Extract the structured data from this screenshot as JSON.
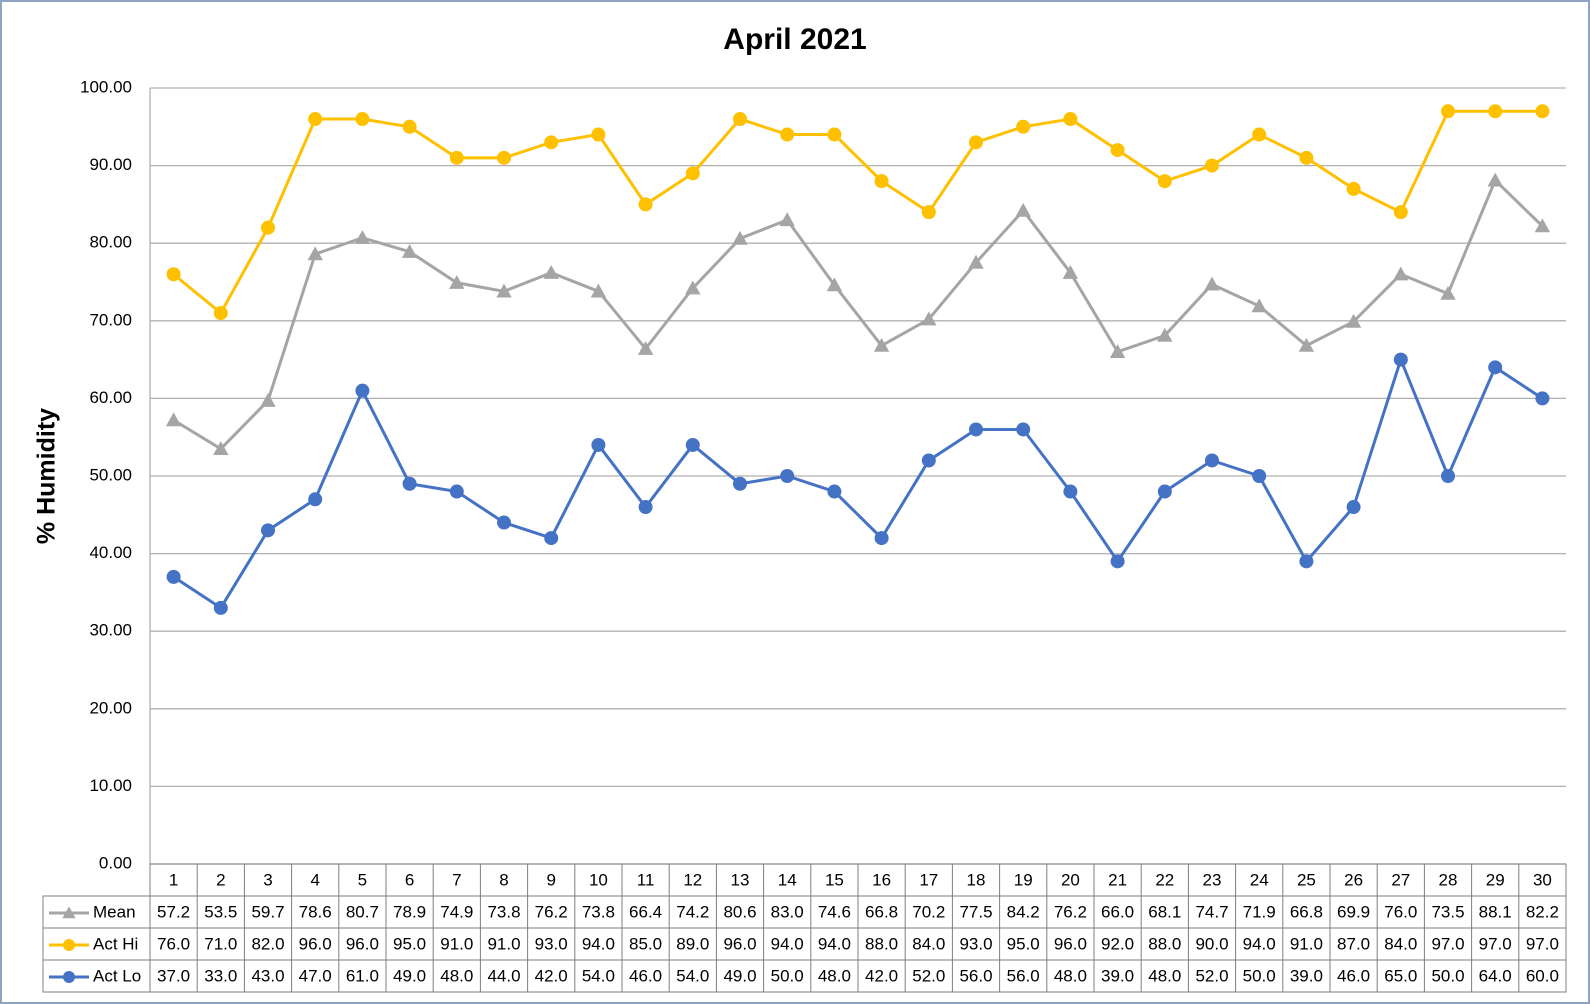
{
  "chart_data": {
    "type": "line",
    "title": "April 2021",
    "y_label": "% Humidity",
    "categories": [
      "1",
      "2",
      "3",
      "4",
      "5",
      "6",
      "7",
      "8",
      "9",
      "10",
      "11",
      "12",
      "13",
      "14",
      "15",
      "16",
      "17",
      "18",
      "19",
      "20",
      "21",
      "22",
      "23",
      "24",
      "25",
      "26",
      "27",
      "28",
      "29",
      "30"
    ],
    "ylim": [
      0,
      100
    ],
    "yticks": [
      {
        "value": 0,
        "label": "0.00"
      },
      {
        "value": 10,
        "label": "10.00"
      },
      {
        "value": 20,
        "label": "20.00"
      },
      {
        "value": 30,
        "label": "30.00"
      },
      {
        "value": 40,
        "label": "40.00"
      },
      {
        "value": 50,
        "label": "50.00"
      },
      {
        "value": 60,
        "label": "60.00"
      },
      {
        "value": 70,
        "label": "70.00"
      },
      {
        "value": 80,
        "label": "80.00"
      },
      {
        "value": 90,
        "label": "90.00"
      },
      {
        "value": 100,
        "label": "100.00"
      }
    ],
    "grid": true,
    "data_table": true,
    "series": [
      {
        "name": "Mean",
        "color": "#a5a5a5",
        "marker": "triangle",
        "values": [
          57.2,
          53.5,
          59.7,
          78.6,
          80.7,
          78.9,
          74.9,
          73.8,
          76.2,
          73.8,
          66.4,
          74.2,
          80.6,
          83.0,
          74.6,
          66.8,
          70.2,
          77.5,
          84.2,
          76.2,
          66.0,
          68.1,
          74.7,
          71.9,
          66.8,
          69.9,
          76.0,
          73.5,
          88.1,
          82.2
        ],
        "value_labels": [
          "57.2",
          "53.5",
          "59.7",
          "78.6",
          "80.7",
          "78.9",
          "74.9",
          "73.8",
          "76.2",
          "73.8",
          "66.4",
          "74.2",
          "80.6",
          "83.0",
          "74.6",
          "66.8",
          "70.2",
          "77.5",
          "84.2",
          "76.2",
          "66.0",
          "68.1",
          "74.7",
          "71.9",
          "66.8",
          "69.9",
          "76.0",
          "73.5",
          "88.1",
          "82.2"
        ]
      },
      {
        "name": "Act Hi",
        "color": "#ffc000",
        "marker": "circle",
        "values": [
          76,
          71,
          82,
          96,
          96,
          95,
          91,
          91,
          93,
          94,
          85,
          89,
          96,
          94,
          94,
          88,
          84,
          93,
          95,
          96,
          92,
          88,
          90,
          94,
          91,
          87,
          84,
          97,
          97,
          97
        ],
        "value_labels": [
          "76.0",
          "71.0",
          "82.0",
          "96.0",
          "96.0",
          "95.0",
          "91.0",
          "91.0",
          "93.0",
          "94.0",
          "85.0",
          "89.0",
          "96.0",
          "94.0",
          "94.0",
          "88.0",
          "84.0",
          "93.0",
          "95.0",
          "96.0",
          "92.0",
          "88.0",
          "90.0",
          "94.0",
          "91.0",
          "87.0",
          "84.0",
          "97.0",
          "97.0",
          "97.0"
        ]
      },
      {
        "name": "Act Lo",
        "color": "#4472c4",
        "marker": "circle",
        "values": [
          37,
          33,
          43,
          47,
          61,
          49,
          48,
          44,
          42,
          54,
          46,
          54,
          49,
          50,
          48,
          42,
          52,
          56,
          56,
          48,
          39,
          48,
          52,
          50,
          39,
          46,
          65,
          50,
          64,
          60
        ],
        "value_labels": [
          "37.0",
          "33.0",
          "43.0",
          "47.0",
          "61.0",
          "49.0",
          "48.0",
          "44.0",
          "42.0",
          "54.0",
          "46.0",
          "54.0",
          "49.0",
          "50.0",
          "48.0",
          "42.0",
          "52.0",
          "56.0",
          "56.0",
          "48.0",
          "39.0",
          "48.0",
          "52.0",
          "50.0",
          "39.0",
          "46.0",
          "65.0",
          "50.0",
          "64.0",
          "60.0"
        ]
      }
    ]
  }
}
